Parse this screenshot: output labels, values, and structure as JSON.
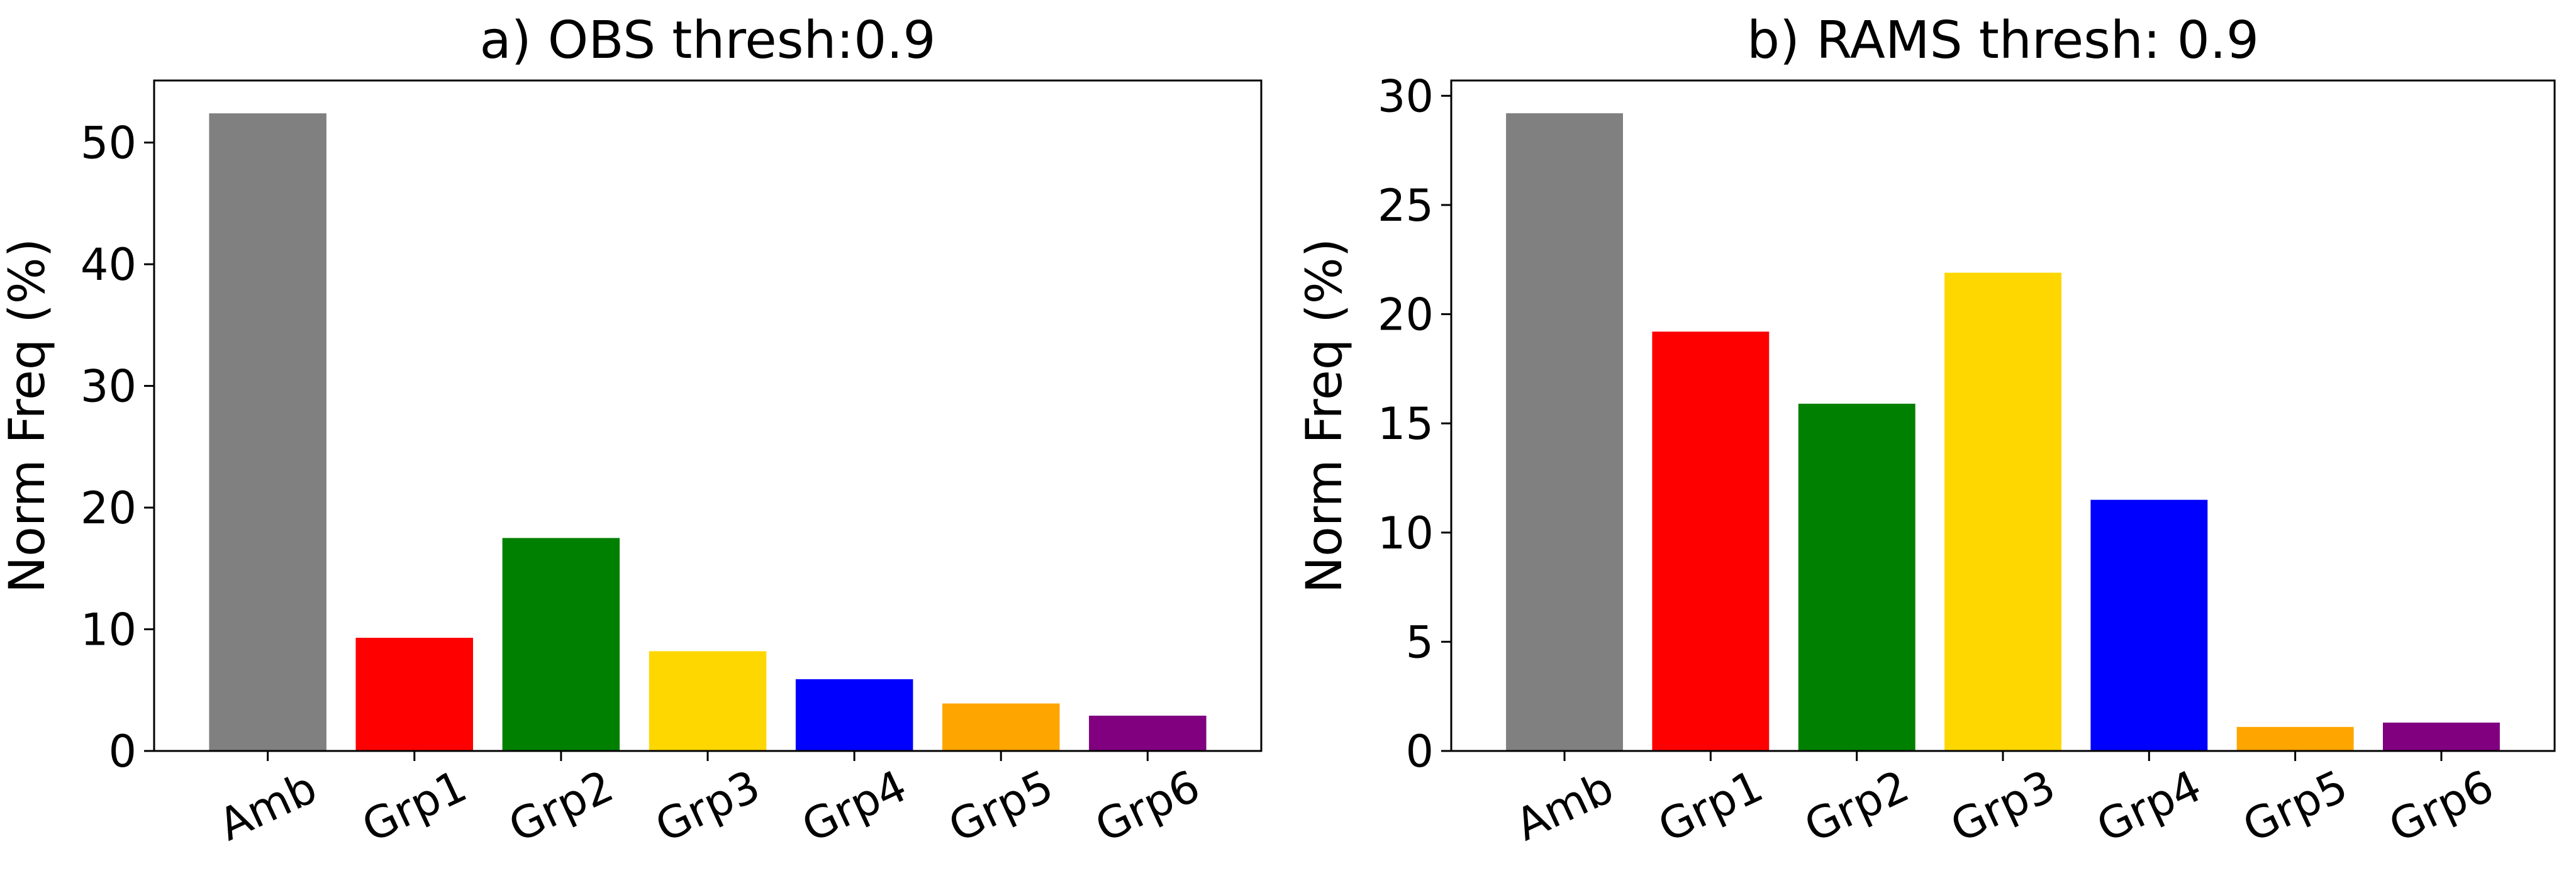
{
  "chart_data": [
    {
      "type": "bar",
      "title": "a) OBS thresh:0.9",
      "xlabel": "",
      "ylabel": "Norm Freq (%)",
      "categories": [
        "Amb",
        "Grp1",
        "Grp2",
        "Grp3",
        "Grp4",
        "Grp5",
        "Grp6"
      ],
      "values": [
        52.4,
        9.3,
        17.5,
        8.2,
        5.9,
        3.9,
        2.9
      ],
      "colors": [
        "#808080",
        "#ff0000",
        "#008000",
        "#ffd700",
        "#0000ff",
        "#ffa500",
        "#800080"
      ],
      "ylim": [
        0,
        55.1
      ],
      "yticks": [
        0,
        10,
        20,
        30,
        40,
        50
      ],
      "xtick_rotation": -25,
      "grid": false,
      "legend": false
    },
    {
      "type": "bar",
      "title": "b) RAMS thresh: 0.9",
      "xlabel": "",
      "ylabel": "Norm Freq (%)",
      "categories": [
        "Amb",
        "Grp1",
        "Grp2",
        "Grp3",
        "Grp4",
        "Grp5",
        "Grp6"
      ],
      "values": [
        29.2,
        19.2,
        15.9,
        21.9,
        11.5,
        1.1,
        1.3
      ],
      "colors": [
        "#808080",
        "#ff0000",
        "#008000",
        "#ffd700",
        "#0000ff",
        "#ffa500",
        "#800080"
      ],
      "ylim": [
        0,
        30.7
      ],
      "yticks": [
        0,
        5,
        10,
        15,
        20,
        25,
        30
      ],
      "xtick_rotation": -25,
      "grid": false,
      "legend": false
    }
  ]
}
